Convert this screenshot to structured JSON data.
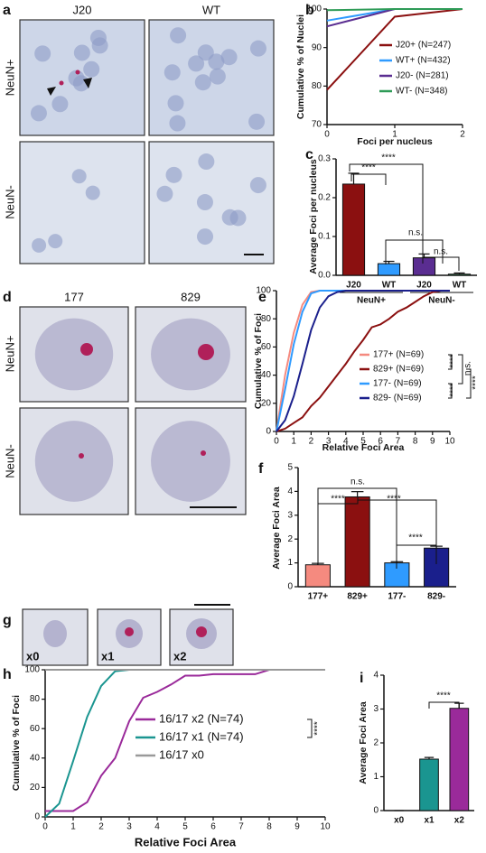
{
  "panel_labels": [
    "a",
    "b",
    "c",
    "d",
    "e",
    "f",
    "g",
    "h",
    "i"
  ],
  "image_panels": [
    {
      "columns": [
        "J20",
        "WT"
      ],
      "rows": [
        "NeuN+",
        "NeuN-"
      ]
    },
    {
      "columns": [
        "177",
        "829"
      ],
      "rows": [
        "NeuN+",
        "NeuN-"
      ]
    },
    {
      "labels": [
        "x0",
        "x1",
        "x2"
      ]
    }
  ],
  "chart_data": [
    {
      "type": "line",
      "ylabel": "Cumulative % of Nuclei",
      "xlabel": "Foci per nucleus",
      "x": [
        0,
        1,
        2
      ],
      "xlim": [
        0,
        2
      ],
      "xticks": [
        0,
        1,
        2
      ],
      "ylim": [
        70,
        100
      ],
      "yticks": [
        70,
        80,
        90,
        100
      ],
      "legend": "lower right",
      "series": [
        {
          "name": "J20+ (N=247)",
          "color": "#8b1010",
          "values": [
            79,
            98,
            100
          ]
        },
        {
          "name": "WT+ (N=432)",
          "color": "#2f9bff",
          "values": [
            97,
            100,
            100
          ]
        },
        {
          "name": "J20- (N=281)",
          "color": "#5a2d91",
          "values": [
            95.5,
            100,
            100
          ]
        },
        {
          "name": "WT- (N=348)",
          "color": "#2e9b57",
          "values": [
            99.7,
            100,
            100
          ]
        }
      ]
    },
    {
      "type": "bar",
      "ylabel": "Average Foci per nucleus",
      "categories": [
        "J20",
        "WT",
        "J20",
        "WT"
      ],
      "groups": [
        "NeuN+",
        "NeuN-"
      ],
      "values": [
        0.235,
        0.03,
        0.045,
        0.003
      ],
      "errors": [
        0.028,
        0.006,
        0.01,
        0.003
      ],
      "colors": [
        "#8b1010",
        "#2f9bff",
        "#5a2d91",
        "#2e9b57"
      ],
      "ylim": [
        0,
        0.3
      ],
      "yticks": [
        {
          "value": 0,
          "label": "0.0"
        },
        0.1,
        0.2,
        0.3
      ],
      "annotations": [
        "****",
        "****",
        "n.s.",
        "n.s."
      ]
    },
    {
      "type": "line",
      "ylabel": "Cumulative % of Foci",
      "xlabel": "Relative Foci Area",
      "x": [
        0,
        0.5,
        1,
        1.5,
        2,
        2.5,
        3,
        3.5,
        4,
        4.5,
        5,
        5.5,
        6,
        6.5,
        7,
        7.5,
        8,
        8.5,
        9,
        9.5,
        10
      ],
      "xlim": [
        0,
        10
      ],
      "xticks": [
        0,
        1,
        2,
        3,
        4,
        5,
        6,
        7,
        8,
        9,
        10
      ],
      "ylim": [
        0,
        100
      ],
      "yticks": [
        0,
        20,
        40,
        60,
        80,
        100
      ],
      "legend": "lower right",
      "series": [
        {
          "name": "177+ (N=69)",
          "color": "#f58a7f",
          "values": [
            0,
            40,
            70,
            90,
            99,
            100,
            100,
            100,
            100,
            100,
            100,
            100,
            100,
            100,
            100,
            100,
            100,
            100,
            100,
            100,
            100
          ]
        },
        {
          "name": "829+ (N=69)",
          "color": "#8b1010",
          "values": [
            0,
            2,
            6,
            10,
            18,
            24,
            32,
            40,
            48,
            57,
            65,
            74,
            76,
            80,
            85,
            88,
            92,
            96,
            99,
            100,
            100
          ]
        },
        {
          "name": "177- (N=69)",
          "color": "#2f9bff",
          "values": [
            0,
            30,
            62,
            85,
            98,
            100,
            100,
            100,
            100,
            100,
            100,
            100,
            100,
            100,
            100,
            100,
            100,
            100,
            100,
            100,
            100
          ]
        },
        {
          "name": "829- (N=69)",
          "color": "#1a1f8c",
          "values": [
            0,
            8,
            25,
            48,
            72,
            88,
            96,
            99,
            100,
            100,
            100,
            100,
            100,
            100,
            100,
            100,
            100,
            100,
            100,
            100,
            100
          ]
        }
      ],
      "annotations": [
        "****",
        "n.s.",
        "****",
        "****"
      ]
    },
    {
      "type": "bar",
      "ylabel": "Average Foci Area",
      "categories": [
        "177+",
        "829+",
        "177-",
        "829-"
      ],
      "values": [
        0.92,
        3.77,
        1.0,
        1.62
      ],
      "errors": [
        0.06,
        0.22,
        0.05,
        0.08
      ],
      "colors": [
        "#f58a7f",
        "#8b1010",
        "#2f9bff",
        "#1a1f8c"
      ],
      "ylim": [
        0,
        5
      ],
      "yticks": [
        0,
        1,
        2,
        3,
        4,
        5
      ],
      "annotations": [
        "n.s.",
        "****",
        "****",
        "****"
      ]
    },
    {
      "type": "line",
      "ylabel": "Cumulative % of Foci",
      "xlabel": "Relative Foci Area",
      "x": [
        0,
        0.5,
        1,
        1.5,
        2,
        2.5,
        3,
        3.5,
        4,
        4.5,
        5,
        5.5,
        6,
        6.5,
        7,
        7.5,
        8,
        8.5,
        9,
        9.5,
        10
      ],
      "xlim": [
        0,
        10
      ],
      "xticks": [
        0,
        1,
        2,
        3,
        4,
        5,
        6,
        7,
        8,
        9,
        10
      ],
      "ylim": [
        0,
        100
      ],
      "yticks": [
        0,
        20,
        40,
        60,
        80,
        100
      ],
      "legend": "center",
      "series": [
        {
          "name": "16/17 x2 (N=74)",
          "color": "#9a2a9a",
          "values": [
            4,
            4,
            4,
            10,
            28,
            40,
            65,
            81,
            85,
            90,
            96,
            96,
            97,
            97,
            97,
            97,
            100,
            100,
            100,
            100,
            100
          ]
        },
        {
          "name": "16/17 x1 (N=74)",
          "color": "#1a9590",
          "values": [
            0,
            9,
            38,
            68,
            89,
            99,
            100,
            100,
            100,
            100,
            100,
            100,
            100,
            100,
            100,
            100,
            100,
            100,
            100,
            100,
            100
          ]
        },
        {
          "name": "16/17 x0",
          "color": "#999999",
          "values": [
            100,
            100,
            100,
            100,
            100,
            100,
            100,
            100,
            100,
            100,
            100,
            100,
            100,
            100,
            100,
            100,
            100,
            100,
            100,
            100,
            100
          ]
        }
      ],
      "annotations": [
        "****"
      ]
    },
    {
      "type": "bar",
      "ylabel": "Average Foci Area",
      "categories": [
        "x0",
        "x1",
        "x2"
      ],
      "values": [
        0,
        1.52,
        3.02
      ],
      "errors": [
        0,
        0.05,
        0.15
      ],
      "colors": [
        "#999999",
        "#1a9590",
        "#9a2a9a"
      ],
      "ylim": [
        0,
        4
      ],
      "yticks": [
        0,
        1,
        2,
        3,
        4
      ],
      "annotations": [
        "****"
      ]
    }
  ]
}
